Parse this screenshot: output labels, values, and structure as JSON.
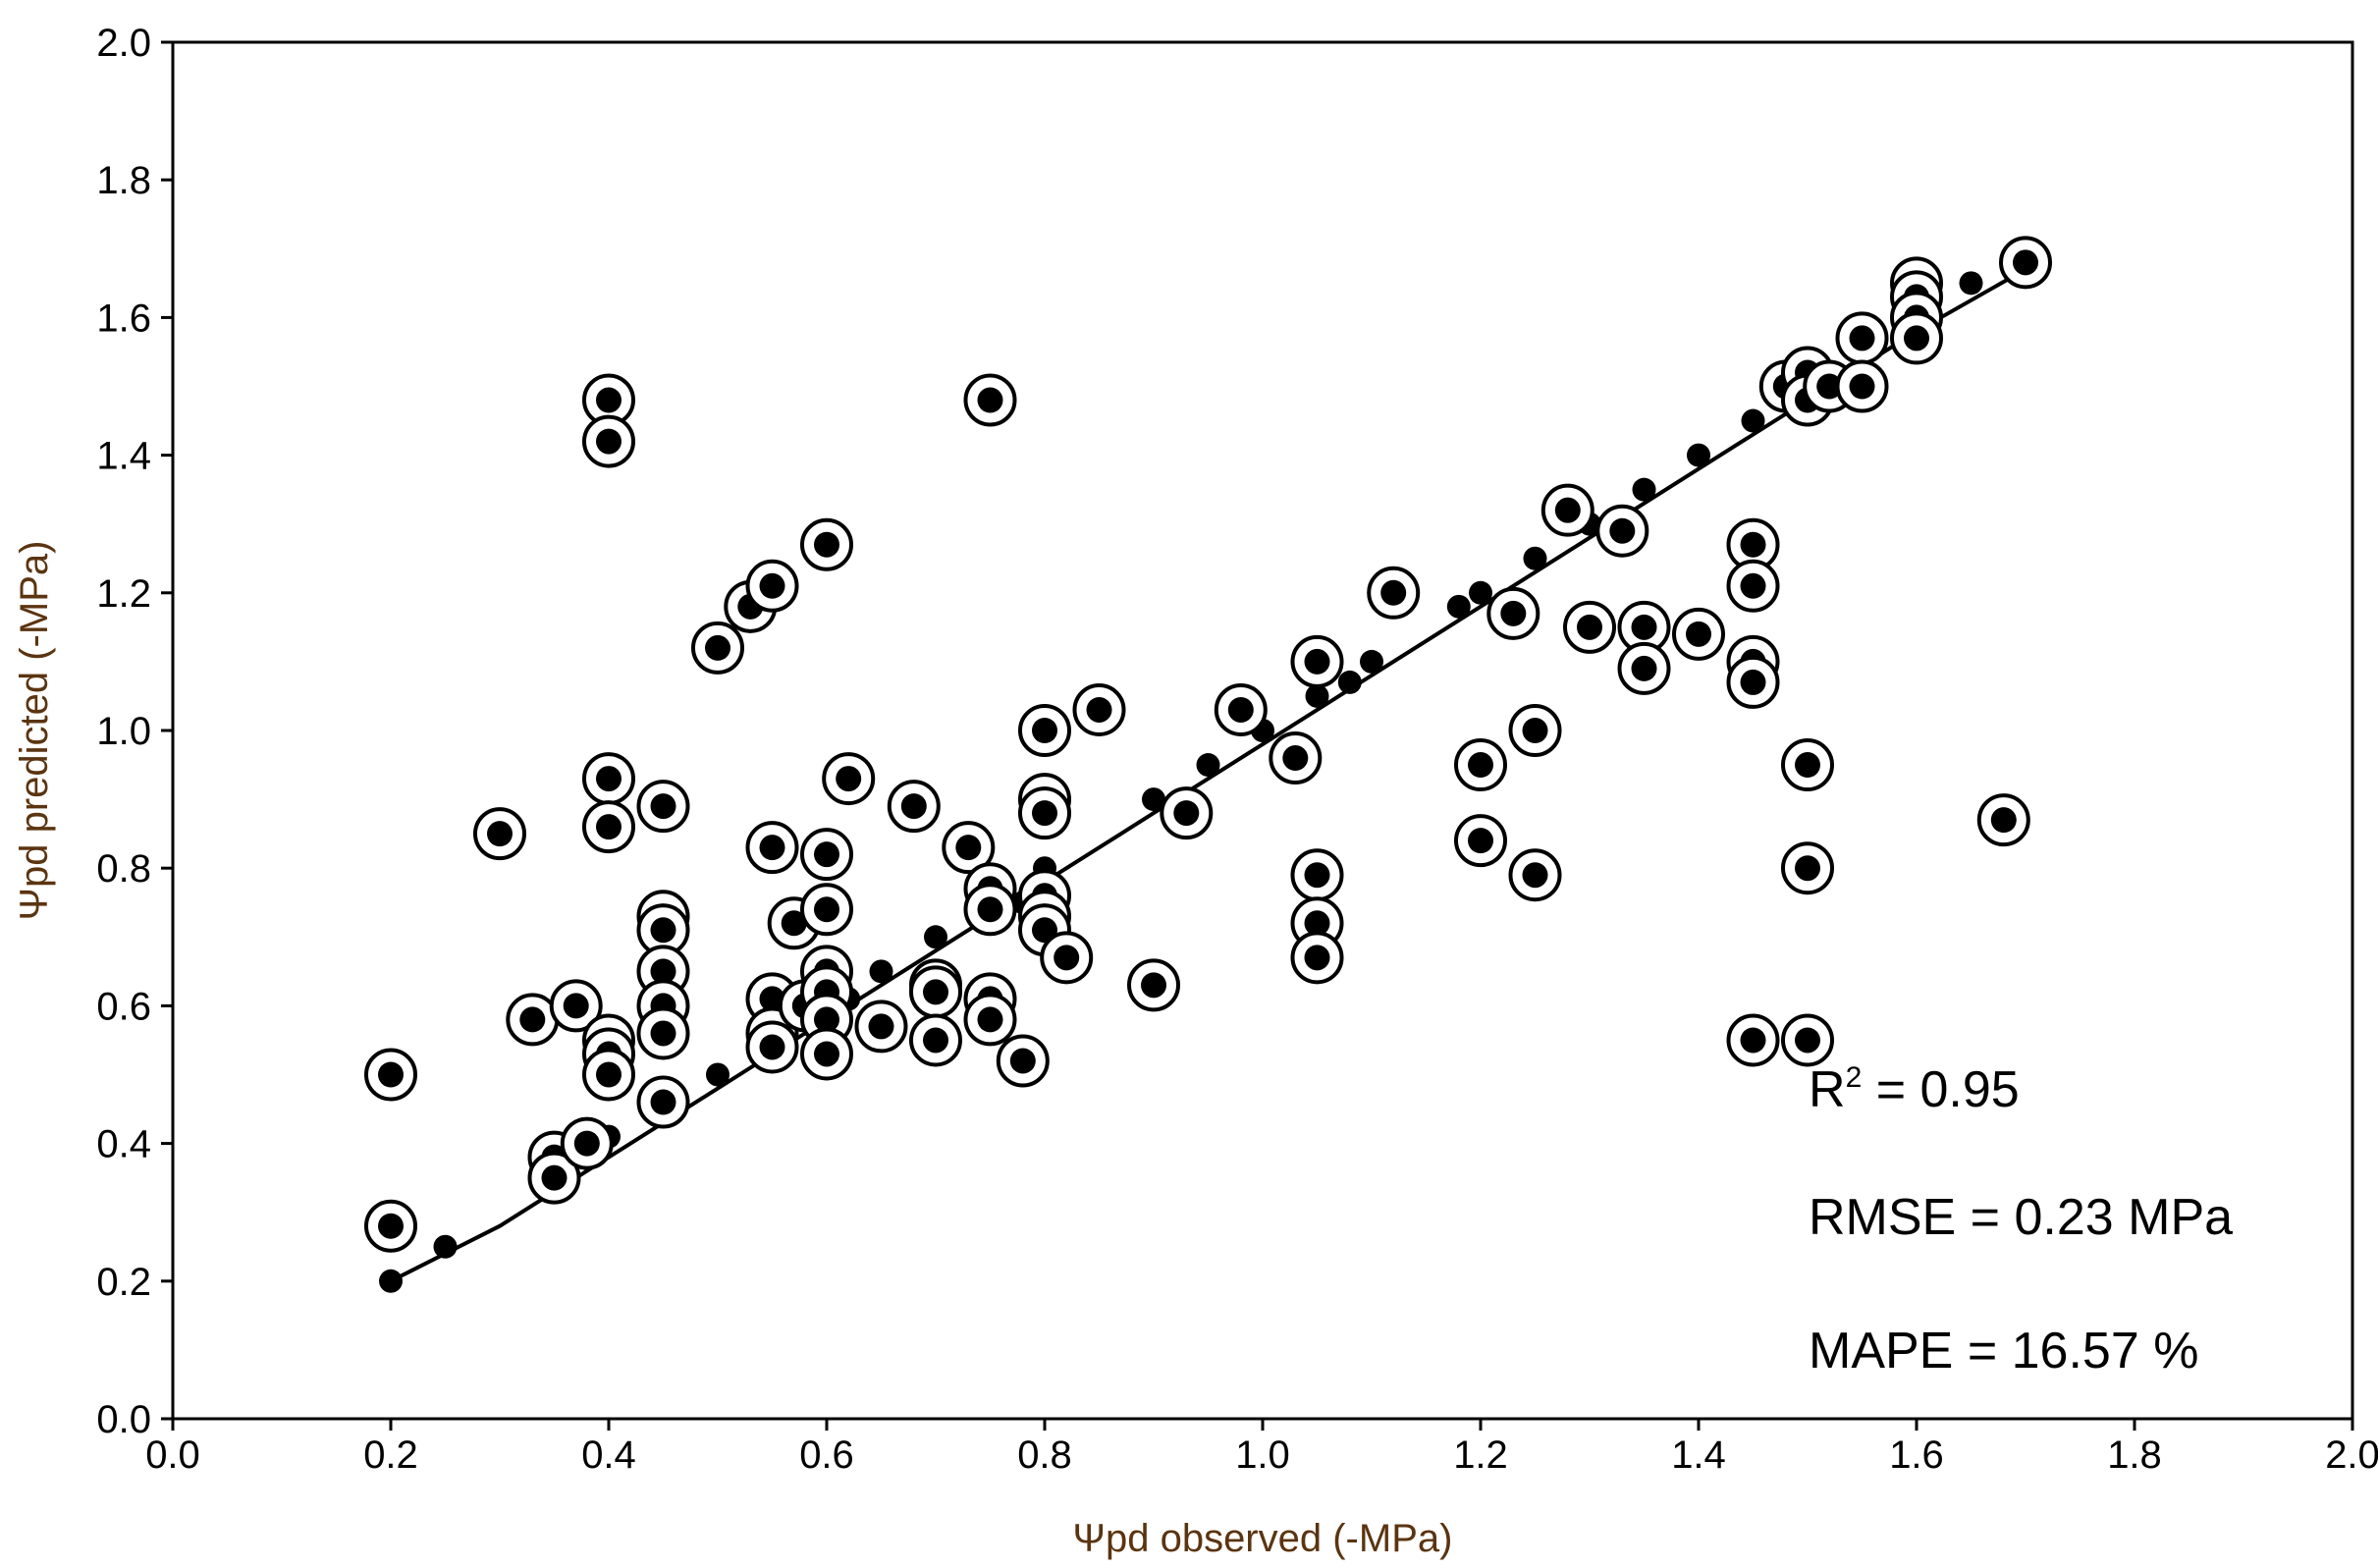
{
  "chart_data": {
    "type": "scatter",
    "title": "",
    "xlabel": "Ψpd observed (-MPa)",
    "ylabel": "Ψpd predicted (-MPa)",
    "xlim": [
      0.0,
      2.0
    ],
    "ylim": [
      0.0,
      2.0
    ],
    "x_ticks": [
      "0.0",
      "0.2",
      "0.4",
      "0.6",
      "0.8",
      "1.0",
      "1.2",
      "1.4",
      "1.6",
      "1.8",
      "2.0"
    ],
    "y_ticks": [
      "0.0",
      "0.2",
      "0.4",
      "0.6",
      "0.8",
      "1.0",
      "1.2",
      "1.4",
      "1.6",
      "1.8",
      "2.0"
    ],
    "grid": false,
    "colors": {
      "points": "#000000",
      "axis_title": "#5b3410"
    },
    "annotations": {
      "r2_label": "R",
      "r2_sup": "2",
      "r2_value": " = 0.95",
      "rmse": "RMSE = 0.23 MPa",
      "mape": "MAPE = 16.57 %"
    },
    "fit_line": [
      [
        0.2,
        0.2
      ],
      [
        0.3,
        0.28
      ],
      [
        0.4,
        0.38
      ],
      [
        0.5,
        0.48
      ],
      [
        0.6,
        0.58
      ],
      [
        0.7,
        0.68
      ],
      [
        0.8,
        0.78
      ],
      [
        0.9,
        0.88
      ],
      [
        1.0,
        0.98
      ],
      [
        1.1,
        1.08
      ],
      [
        1.2,
        1.18
      ],
      [
        1.3,
        1.28
      ],
      [
        1.4,
        1.38
      ],
      [
        1.5,
        1.48
      ],
      [
        1.6,
        1.58
      ],
      [
        1.7,
        1.67
      ]
    ],
    "series": [
      {
        "marker": "dot",
        "points": [
          [
            0.2,
            0.2
          ],
          [
            0.25,
            0.25
          ],
          [
            0.35,
            0.37
          ],
          [
            0.38,
            0.39
          ],
          [
            0.4,
            0.41
          ],
          [
            0.45,
            0.47
          ],
          [
            0.5,
            0.5
          ],
          [
            0.55,
            0.56
          ],
          [
            0.6,
            0.61
          ],
          [
            0.62,
            0.61
          ],
          [
            0.65,
            0.65
          ],
          [
            0.7,
            0.7
          ],
          [
            0.75,
            0.73
          ],
          [
            0.78,
            0.75
          ],
          [
            0.8,
            0.8
          ],
          [
            0.9,
            0.9
          ],
          [
            0.95,
            0.95
          ],
          [
            1.0,
            1.0
          ],
          [
            1.05,
            1.05
          ],
          [
            1.08,
            1.07
          ],
          [
            1.1,
            1.1
          ],
          [
            1.18,
            1.18
          ],
          [
            1.2,
            1.2
          ],
          [
            1.25,
            1.25
          ],
          [
            1.3,
            1.3
          ],
          [
            1.35,
            1.35
          ],
          [
            1.4,
            1.4
          ],
          [
            1.45,
            1.45
          ],
          [
            1.5,
            1.5
          ],
          [
            1.55,
            1.55
          ],
          [
            1.6,
            1.6
          ],
          [
            1.65,
            1.65
          ],
          [
            1.7,
            1.7
          ],
          [
            1.45,
            1.25
          ],
          [
            1.35,
            1.13
          ],
          [
            1.05,
            0.7
          ],
          [
            0.4,
            0.52
          ],
          [
            0.55,
            0.6
          ],
          [
            0.6,
            0.54
          ],
          [
            0.75,
            0.62
          ]
        ]
      },
      {
        "marker": "circled-dot",
        "points": [
          [
            0.2,
            0.5
          ],
          [
            0.2,
            0.28
          ],
          [
            0.3,
            0.85
          ],
          [
            0.33,
            0.58
          ],
          [
            0.35,
            0.38
          ],
          [
            0.35,
            0.35
          ],
          [
            0.37,
            0.6
          ],
          [
            0.38,
            0.4
          ],
          [
            0.4,
            1.48
          ],
          [
            0.4,
            1.42
          ],
          [
            0.4,
            0.93
          ],
          [
            0.4,
            0.86
          ],
          [
            0.4,
            0.55
          ],
          [
            0.4,
            0.53
          ],
          [
            0.4,
            0.5
          ],
          [
            0.45,
            0.89
          ],
          [
            0.45,
            0.73
          ],
          [
            0.45,
            0.71
          ],
          [
            0.45,
            0.65
          ],
          [
            0.45,
            0.6
          ],
          [
            0.45,
            0.56
          ],
          [
            0.45,
            0.46
          ],
          [
            0.5,
            1.12
          ],
          [
            0.53,
            1.18
          ],
          [
            0.55,
            1.21
          ],
          [
            0.55,
            0.83
          ],
          [
            0.55,
            0.61
          ],
          [
            0.55,
            0.56
          ],
          [
            0.55,
            0.54
          ],
          [
            0.57,
            0.72
          ],
          [
            0.58,
            0.6
          ],
          [
            0.6,
            1.27
          ],
          [
            0.6,
            0.82
          ],
          [
            0.6,
            0.74
          ],
          [
            0.6,
            0.65
          ],
          [
            0.6,
            0.62
          ],
          [
            0.6,
            0.58
          ],
          [
            0.6,
            0.53
          ],
          [
            0.62,
            0.93
          ],
          [
            0.65,
            0.57
          ],
          [
            0.68,
            0.89
          ],
          [
            0.7,
            0.63
          ],
          [
            0.7,
            0.62
          ],
          [
            0.7,
            0.55
          ],
          [
            0.73,
            0.83
          ],
          [
            0.75,
            1.48
          ],
          [
            0.75,
            0.77
          ],
          [
            0.75,
            0.74
          ],
          [
            0.75,
            0.61
          ],
          [
            0.75,
            0.58
          ],
          [
            0.78,
            0.52
          ],
          [
            0.8,
            1.0
          ],
          [
            0.8,
            0.9
          ],
          [
            0.8,
            0.88
          ],
          [
            0.8,
            0.76
          ],
          [
            0.8,
            0.73
          ],
          [
            0.8,
            0.71
          ],
          [
            0.82,
            0.67
          ],
          [
            0.85,
            1.03
          ],
          [
            0.9,
            0.63
          ],
          [
            0.93,
            0.88
          ],
          [
            0.98,
            1.03
          ],
          [
            1.03,
            0.96
          ],
          [
            1.05,
            1.1
          ],
          [
            1.05,
            0.79
          ],
          [
            1.05,
            0.72
          ],
          [
            1.05,
            0.67
          ],
          [
            1.12,
            1.2
          ],
          [
            1.2,
            0.95
          ],
          [
            1.2,
            0.84
          ],
          [
            1.23,
            1.17
          ],
          [
            1.25,
            1.0
          ],
          [
            1.25,
            0.79
          ],
          [
            1.28,
            1.32
          ],
          [
            1.3,
            1.15
          ],
          [
            1.33,
            1.29
          ],
          [
            1.35,
            1.15
          ],
          [
            1.35,
            1.09
          ],
          [
            1.4,
            1.14
          ],
          [
            1.45,
            1.27
          ],
          [
            1.45,
            1.21
          ],
          [
            1.45,
            1.1
          ],
          [
            1.45,
            1.07
          ],
          [
            1.45,
            0.55
          ],
          [
            1.48,
            1.5
          ],
          [
            1.5,
            1.52
          ],
          [
            1.5,
            1.48
          ],
          [
            1.5,
            0.95
          ],
          [
            1.5,
            0.8
          ],
          [
            1.5,
            0.55
          ],
          [
            1.52,
            1.5
          ],
          [
            1.55,
            1.57
          ],
          [
            1.55,
            1.5
          ],
          [
            1.6,
            1.65
          ],
          [
            1.6,
            1.63
          ],
          [
            1.6,
            1.6
          ],
          [
            1.6,
            1.57
          ],
          [
            1.68,
            0.87
          ],
          [
            1.7,
            1.68
          ]
        ]
      }
    ]
  }
}
